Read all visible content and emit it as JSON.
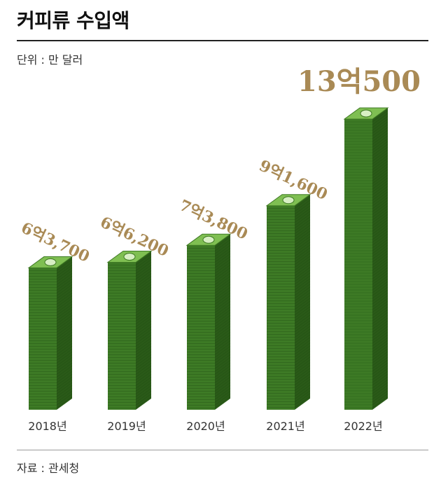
{
  "header": {
    "title": "커피류 수입액",
    "unit": "단위 : 만 달러"
  },
  "footer": {
    "source": "자료 : 관세청"
  },
  "colors": {
    "accent_gold": "#a98a55",
    "bill_front": "#3d7a25",
    "bill_side": "#2a5a18",
    "bill_top": "#7fbf52"
  },
  "chart_data": {
    "type": "bar",
    "title": "커피류 수입액",
    "ylabel": "단위 : 만 달러",
    "categories": [
      "2018년",
      "2019년",
      "2020년",
      "2021년",
      "2022년"
    ],
    "values": [
      63700,
      66200,
      73800,
      91600,
      130500
    ],
    "value_labels": [
      "6억3,700",
      "6억6,200",
      "7억3,800",
      "9억1,600",
      "13억500"
    ],
    "ylim": [
      0,
      130500
    ],
    "grid": false
  }
}
